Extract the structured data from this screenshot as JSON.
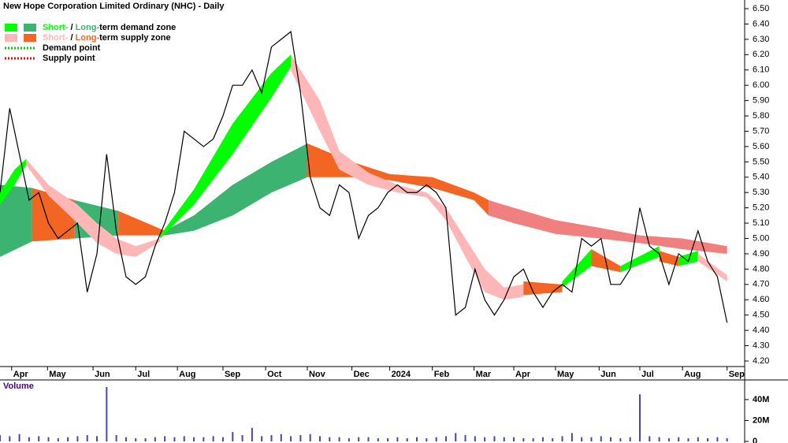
{
  "chart_data": {
    "type": "line",
    "title": "New Hope Corporation Limited Ordinary (NHC) - Daily",
    "legend": [
      {
        "short": "Short-",
        "sep": " / ",
        "long": "Long-",
        "rest": "term demand zone",
        "colors": [
          "#00ff00",
          "#3cb371"
        ]
      },
      {
        "short": "Short-",
        "sep": " / ",
        "long": "Long-",
        "rest": "term supply zone",
        "colors": [
          "#ffb6b6",
          "#f26522"
        ]
      },
      {
        "text": "Demand point",
        "color": "#00cc00"
      },
      {
        "text": "Supply point",
        "color": "#ff0000"
      }
    ],
    "x": [
      0,
      1,
      2,
      3,
      4,
      5,
      6,
      7,
      8,
      9,
      10,
      11,
      12,
      13,
      14,
      15,
      16,
      17,
      18,
      19,
      20,
      21,
      22,
      23,
      24,
      25,
      26,
      27,
      28,
      29,
      30,
      31,
      32,
      33,
      34,
      35,
      36,
      37,
      38,
      39,
      40,
      41,
      42,
      43,
      44,
      45,
      46,
      47,
      48,
      49,
      50,
      51,
      52,
      53,
      54,
      55,
      56,
      57,
      58,
      59,
      60,
      61,
      62,
      63,
      64,
      65,
      66,
      67,
      68,
      69,
      70,
      71,
      72,
      73,
      74,
      75
    ],
    "series": [
      {
        "color": "#000000",
        "values": [
          5.3,
          5.85,
          5.55,
          5.25,
          5.3,
          5.1,
          5.0,
          5.05,
          5.1,
          4.65,
          4.9,
          5.55,
          5.05,
          4.75,
          4.7,
          4.75,
          4.95,
          5.1,
          5.3,
          5.7,
          5.65,
          5.6,
          5.65,
          5.8,
          6.0,
          6.0,
          6.1,
          5.95,
          6.25,
          6.3,
          6.35,
          5.95,
          5.4,
          5.2,
          5.15,
          5.35,
          5.3,
          5.0,
          5.15,
          5.2,
          5.3,
          5.35,
          5.3,
          5.3,
          5.35,
          5.3,
          5.2,
          4.5,
          4.55,
          4.8,
          4.6,
          4.5,
          4.6,
          4.75,
          4.8,
          4.65,
          4.55,
          4.65,
          4.7,
          4.65,
          5.0,
          4.95,
          5.0,
          4.7,
          4.7,
          4.8,
          5.2,
          4.95,
          4.9,
          4.7,
          4.9,
          4.85,
          5.05,
          4.85,
          4.75,
          4.45
        ]
      }
    ],
    "bands": [
      {
        "color": "#3cb371",
        "x": [
          0,
          3.3
        ],
        "lower": [
          4.88,
          4.98
        ],
        "upper": [
          5.35,
          5.33
        ]
      },
      {
        "color": "#f26522",
        "x": [
          3.3,
          7.7
        ],
        "lower": [
          4.98,
          5.0
        ],
        "upper": [
          5.33,
          5.25
        ]
      },
      {
        "color": "#3cb371",
        "x": [
          7.7,
          12.2
        ],
        "lower": [
          5.0,
          5.02
        ],
        "upper": [
          5.25,
          5.18
        ]
      },
      {
        "color": "#f26522",
        "x": [
          12.2,
          17
        ],
        "lower": [
          5.02,
          5.02
        ],
        "upper": [
          5.18,
          5.05
        ]
      },
      {
        "color": "#3cb371",
        "x": [
          17,
          20,
          24,
          28,
          31.7
        ],
        "lower": [
          5.02,
          5.05,
          5.15,
          5.3,
          5.4
        ],
        "upper": [
          5.05,
          5.15,
          5.35,
          5.5,
          5.62
        ]
      },
      {
        "color": "#f26522",
        "x": [
          31.7,
          36.3,
          40.2,
          44.6,
          48.9,
          50.4
        ],
        "lower": [
          5.4,
          5.4,
          5.38,
          5.33,
          5.25,
          5.15
        ],
        "upper": [
          5.62,
          5.5,
          5.42,
          5.4,
          5.3,
          5.25
        ]
      },
      {
        "color": "#f08080",
        "x": [
          50.4,
          53,
          57.3,
          61.8,
          66,
          70.4,
          75
        ],
        "lower": [
          5.15,
          5.1,
          5.03,
          5.0,
          4.97,
          4.93,
          4.9
        ],
        "upper": [
          5.25,
          5.2,
          5.12,
          5.07,
          5.02,
          5.0,
          4.95
        ]
      },
      {
        "color": "#00ff00",
        "x": [
          0,
          1.5,
          2.7
        ],
        "lower": [
          5.22,
          5.35,
          5.48
        ],
        "upper": [
          5.3,
          5.45,
          5.52
        ]
      },
      {
        "color": "#ffb6b6",
        "x": [
          2.7,
          5,
          8,
          10,
          12,
          14,
          16.5
        ],
        "lower": [
          5.48,
          5.28,
          5.1,
          4.97,
          4.9,
          4.88,
          4.98
        ],
        "upper": [
          5.52,
          5.35,
          5.22,
          5.1,
          5.0,
          4.95,
          5.0
        ]
      },
      {
        "color": "#00ff00",
        "x": [
          16.5,
          20,
          24,
          28,
          30
        ],
        "lower": [
          5.0,
          5.22,
          5.55,
          5.92,
          6.12
        ],
        "upper": [
          5.02,
          5.32,
          5.75,
          6.08,
          6.2
        ]
      },
      {
        "color": "#ffb6b6",
        "x": [
          30,
          33,
          35,
          38,
          41,
          44,
          46,
          48,
          50,
          52,
          54
        ],
        "lower": [
          6.1,
          5.7,
          5.45,
          5.35,
          5.3,
          5.27,
          5.12,
          4.88,
          4.65,
          4.6,
          4.62
        ],
        "upper": [
          6.2,
          5.9,
          5.57,
          5.43,
          5.35,
          5.3,
          5.2,
          5.0,
          4.8,
          4.68,
          4.7
        ]
      },
      {
        "color": "#f26522",
        "x": [
          54,
          58
        ],
        "lower": [
          4.63,
          4.65
        ],
        "upper": [
          4.72,
          4.7
        ]
      },
      {
        "color": "#00ff00",
        "x": [
          58,
          61
        ],
        "lower": [
          4.68,
          4.82
        ],
        "upper": [
          4.72,
          4.93
        ]
      },
      {
        "color": "#f26522",
        "x": [
          61,
          64
        ],
        "lower": [
          4.82,
          4.78
        ],
        "upper": [
          4.93,
          4.82
        ]
      },
      {
        "color": "#00ff00",
        "x": [
          64,
          68
        ],
        "lower": [
          4.78,
          4.88
        ],
        "upper": [
          4.82,
          4.95
        ]
      },
      {
        "color": "#f26522",
        "x": [
          68,
          70
        ],
        "lower": [
          4.85,
          4.82
        ],
        "upper": [
          4.92,
          4.88
        ]
      },
      {
        "color": "#00ff00",
        "x": [
          70,
          72
        ],
        "lower": [
          4.82,
          4.85
        ],
        "upper": [
          4.88,
          4.92
        ]
      },
      {
        "color": "#ffb6b6",
        "x": [
          72,
          75
        ],
        "lower": [
          4.85,
          4.72
        ],
        "upper": [
          4.9,
          4.76
        ]
      }
    ],
    "xlim": [
      0,
      76
    ],
    "xticks": [
      {
        "value": 1.2,
        "label": "Apr"
      },
      {
        "value": 4.9,
        "label": "May"
      },
      {
        "value": 9.6,
        "label": "Jun"
      },
      {
        "value": 14,
        "label": "Jul"
      },
      {
        "value": 18.3,
        "label": "Aug"
      },
      {
        "value": 23,
        "label": "Sep"
      },
      {
        "value": 27.4,
        "label": "Oct"
      },
      {
        "value": 31.7,
        "label": "Nov"
      },
      {
        "value": 36.3,
        "label": "Dec"
      },
      {
        "value": 40.2,
        "label": "2024"
      },
      {
        "value": 44.6,
        "label": "Feb"
      },
      {
        "value": 48.9,
        "label": "Mar"
      },
      {
        "value": 53,
        "label": "Apr"
      },
      {
        "value": 57.3,
        "label": "May"
      },
      {
        "value": 61.8,
        "label": "Jun"
      },
      {
        "value": 66,
        "label": "Jul"
      },
      {
        "value": 70.4,
        "label": "Aug"
      },
      {
        "value": 75,
        "label": "Sep"
      }
    ],
    "ylim": [
      4.2,
      6.5
    ],
    "yticks": [
      {
        "value": 4.2,
        "label": "4.20"
      },
      {
        "value": 4.3,
        "label": "4.30"
      },
      {
        "value": 4.4,
        "label": "4.40"
      },
      {
        "value": 4.5,
        "label": "4.50"
      },
      {
        "value": 4.6,
        "label": "4.60"
      },
      {
        "value": 4.7,
        "label": "4.70"
      },
      {
        "value": 4.8,
        "label": "4.80"
      },
      {
        "value": 4.9,
        "label": "4.90"
      },
      {
        "value": 5.0,
        "label": "5.00"
      },
      {
        "value": 5.1,
        "label": "5.10"
      },
      {
        "value": 5.2,
        "label": "5.20"
      },
      {
        "value": 5.3,
        "label": "5.30"
      },
      {
        "value": 5.4,
        "label": "5.40"
      },
      {
        "value": 5.5,
        "label": "5.50"
      },
      {
        "value": 5.6,
        "label": "5.60"
      },
      {
        "value": 5.7,
        "label": "5.70"
      },
      {
        "value": 5.8,
        "label": "5.80"
      },
      {
        "value": 5.9,
        "label": "5.90"
      },
      {
        "value": 6.0,
        "label": "6.00"
      },
      {
        "value": 6.1,
        "label": "6.10"
      },
      {
        "value": 6.2,
        "label": "6.20"
      },
      {
        "value": 6.3,
        "label": "6.30"
      },
      {
        "value": 6.4,
        "label": "6.40"
      },
      {
        "value": 6.5,
        "label": "6.50"
      }
    ],
    "volume": {
      "label": "Volume",
      "color": "#4444bb",
      "values": [
        6000000,
        5000000,
        7000000,
        4000000,
        5000000,
        4000000,
        3000000,
        4000000,
        5000000,
        6000000,
        5000000,
        52000000,
        6000000,
        4000000,
        3000000,
        3000000,
        4000000,
        5000000,
        4000000,
        5000000,
        4000000,
        4000000,
        5000000,
        4000000,
        9000000,
        6000000,
        13000000,
        5000000,
        6000000,
        7000000,
        5000000,
        6000000,
        7000000,
        5000000,
        4000000,
        4000000,
        3000000,
        4000000,
        4000000,
        3000000,
        3000000,
        4000000,
        3000000,
        4000000,
        3000000,
        4000000,
        5000000,
        8000000,
        6000000,
        5000000,
        4000000,
        5000000,
        4000000,
        4000000,
        3000000,
        3000000,
        4000000,
        3000000,
        5000000,
        8000000,
        4000000,
        4000000,
        5000000,
        4000000,
        3000000,
        4000000,
        45000000,
        5000000,
        4000000,
        3000000,
        4000000,
        3000000,
        4000000,
        3000000,
        4000000,
        3000000
      ],
      "ylim": [
        0,
        58000000
      ],
      "yticks": [
        {
          "value": 0,
          "label": "0"
        },
        {
          "value": 20000000,
          "label": "20M"
        },
        {
          "value": 40000000,
          "label": "40M"
        }
      ]
    }
  }
}
